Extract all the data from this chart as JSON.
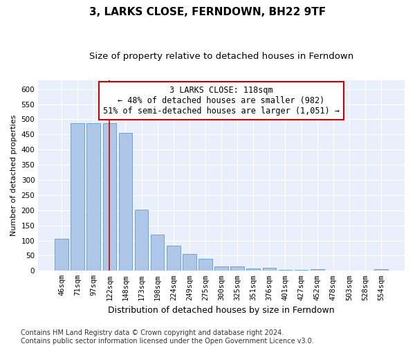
{
  "title": "3, LARKS CLOSE, FERNDOWN, BH22 9TF",
  "subtitle": "Size of property relative to detached houses in Ferndown",
  "xlabel": "Distribution of detached houses by size in Ferndown",
  "ylabel": "Number of detached properties",
  "categories": [
    "46sqm",
    "71sqm",
    "97sqm",
    "122sqm",
    "148sqm",
    "173sqm",
    "198sqm",
    "224sqm",
    "249sqm",
    "275sqm",
    "300sqm",
    "325sqm",
    "351sqm",
    "376sqm",
    "401sqm",
    "427sqm",
    "452sqm",
    "478sqm",
    "503sqm",
    "528sqm",
    "554sqm"
  ],
  "values": [
    105,
    487,
    487,
    487,
    455,
    202,
    120,
    83,
    55,
    39,
    14,
    15,
    7,
    10,
    2,
    2,
    5,
    0,
    0,
    0,
    5
  ],
  "bar_color": "#aec6e8",
  "bar_edge_color": "#5b9bd5",
  "vline_x": 3,
  "vline_color": "#cc0000",
  "annotation_line1": "3 LARKS CLOSE: 118sqm",
  "annotation_line2": "← 48% of detached houses are smaller (982)",
  "annotation_line3": "51% of semi-detached houses are larger (1,051) →",
  "annotation_box_color": "#ffffff",
  "annotation_box_edge_color": "#cc0000",
  "ylim": [
    0,
    630
  ],
  "yticks": [
    0,
    50,
    100,
    150,
    200,
    250,
    300,
    350,
    400,
    450,
    500,
    550,
    600
  ],
  "footer": "Contains HM Land Registry data © Crown copyright and database right 2024.\nContains public sector information licensed under the Open Government Licence v3.0.",
  "bg_color": "#eaf0fb",
  "grid_color": "#ffffff",
  "fig_bg_color": "#ffffff",
  "title_fontsize": 11,
  "subtitle_fontsize": 9.5,
  "xlabel_fontsize": 9,
  "ylabel_fontsize": 8,
  "tick_fontsize": 7.5,
  "annotation_fontsize": 8.5,
  "footer_fontsize": 7
}
